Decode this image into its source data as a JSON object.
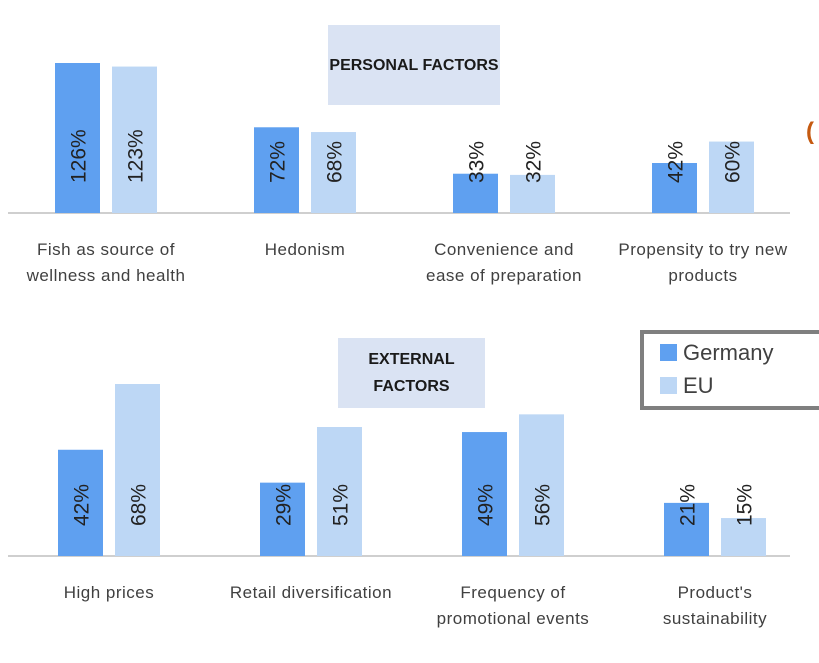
{
  "chart_data": [
    {
      "type": "bar",
      "title": "PERSONAL FACTORS",
      "categories": [
        "Fish as source of wellness and health",
        "Hedonism",
        "Convenience and ease of preparation",
        "Propensity to try new products"
      ],
      "series": [
        {
          "name": "Germany",
          "color": "#5fa0f0",
          "values": [
            126,
            72,
            33,
            42
          ],
          "value_labels": [
            "126%",
            "72%",
            "33%",
            "42%"
          ]
        },
        {
          "name": "EU",
          "color": "#bdd7f5",
          "values": [
            123,
            68,
            32,
            60
          ],
          "value_labels": [
            "123%",
            "68%",
            "32%",
            "60%"
          ]
        }
      ],
      "legend": "right"
    },
    {
      "type": "bar",
      "title": "EXTERNAL FACTORS",
      "categories": [
        "High prices",
        "Retail diversification",
        "Frequency of promotional events",
        "Product's sustainability"
      ],
      "series": [
        {
          "name": "Germany",
          "color": "#5fa0f0",
          "values": [
            42,
            29,
            49,
            21
          ],
          "value_labels": [
            "42%",
            "29%",
            "49%",
            "21%"
          ]
        },
        {
          "name": "EU",
          "color": "#bdd7f5",
          "values": [
            68,
            51,
            56,
            15
          ],
          "value_labels": [
            "68%",
            "51%",
            "56%",
            "15%"
          ]
        }
      ]
    }
  ],
  "annotation": "("
}
